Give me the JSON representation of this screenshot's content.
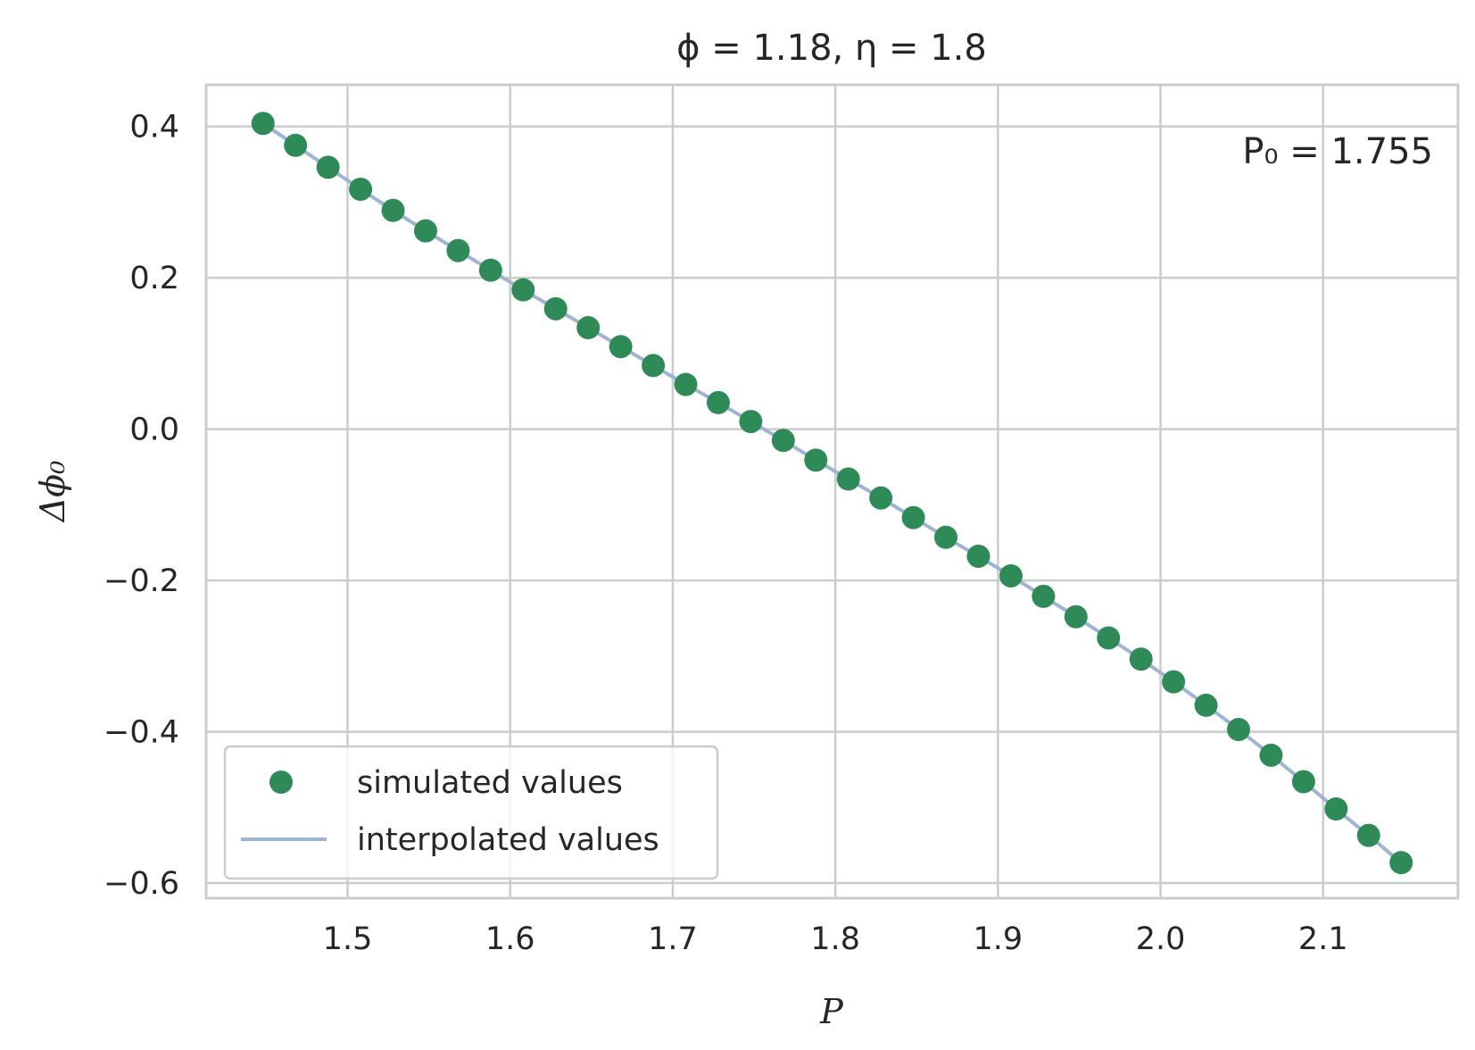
{
  "chart_data": {
    "type": "line",
    "title": "ϕ = 1.18,  η = 1.8",
    "xlabel": "P",
    "ylabel": "Δϕ₀",
    "annotation": "P₀ = 1.755",
    "xlim": [
      1.413,
      2.183
    ],
    "ylim": [
      -0.62,
      0.455
    ],
    "xticks": [
      1.5,
      1.6,
      1.7,
      1.8,
      1.9,
      2.0,
      2.1
    ],
    "xtick_labels": [
      "1.5",
      "1.6",
      "1.7",
      "1.8",
      "1.9",
      "2.0",
      "2.1"
    ],
    "yticks": [
      0.4,
      0.2,
      0.0,
      -0.2,
      -0.4,
      -0.6
    ],
    "ytick_labels": [
      "0.4",
      "0.2",
      "0.0",
      "−0.2",
      "−0.4",
      "−0.6"
    ],
    "grid": true,
    "legend_position": "lower-left",
    "series": [
      {
        "name": "simulated values",
        "kind": "scatter",
        "color": "#2e8b57",
        "x": [
          1.448,
          1.468,
          1.488,
          1.508,
          1.528,
          1.548,
          1.568,
          1.588,
          1.608,
          1.628,
          1.648,
          1.668,
          1.688,
          1.708,
          1.728,
          1.748,
          1.768,
          1.788,
          1.808,
          1.828,
          1.848,
          1.868,
          1.888,
          1.908,
          1.928,
          1.948,
          1.968,
          1.988,
          2.008,
          2.028,
          2.048,
          2.068,
          2.088,
          2.108,
          2.128,
          2.148
        ],
        "y": [
          0.404,
          0.375,
          0.346,
          0.317,
          0.289,
          0.262,
          0.236,
          0.21,
          0.184,
          0.159,
          0.134,
          0.109,
          0.084,
          0.059,
          0.035,
          0.01,
          -0.015,
          -0.041,
          -0.066,
          -0.091,
          -0.117,
          -0.143,
          -0.168,
          -0.194,
          -0.221,
          -0.248,
          -0.276,
          -0.304,
          -0.334,
          -0.365,
          -0.397,
          -0.431,
          -0.466,
          -0.502,
          -0.537,
          -0.573
        ]
      },
      {
        "name": "interpolated values",
        "kind": "line",
        "color": "#9fb3d4"
      }
    ]
  }
}
